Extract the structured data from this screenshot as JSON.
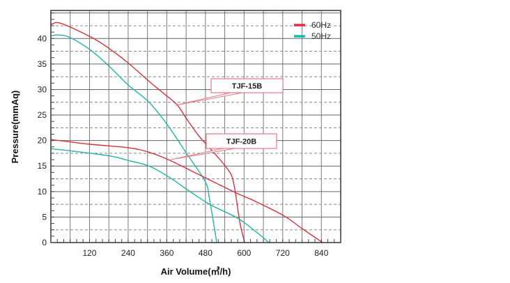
{
  "chart_data": {
    "type": "line",
    "title": "",
    "xlabel": "Air Volume(㎥/h)",
    "ylabel": "Pressure(mmAq)",
    "xlim": [
      0,
      900
    ],
    "ylim": [
      0,
      45.5
    ],
    "xticks": [
      120,
      240,
      360,
      480,
      600,
      720,
      840
    ],
    "yticks": [
      0,
      5,
      10,
      15,
      20,
      25,
      30,
      35,
      40
    ],
    "grid": true,
    "legend_position": "top-right",
    "legend": [
      {
        "label": "60Hz",
        "color": "#d9303a"
      },
      {
        "label": "50Hz",
        "color": "#1fb5a8"
      }
    ],
    "annotations": [
      {
        "text": "TJF-15B",
        "target_series": "TJF-15B 60Hz"
      },
      {
        "text": "TJF-20B",
        "target_series": "TJF-20B 60Hz"
      }
    ],
    "series": [
      {
        "model": "TJF-15B",
        "freq": "60Hz",
        "color": "#d9303a",
        "points": [
          [
            0,
            42.7
          ],
          [
            30,
            43
          ],
          [
            124,
            40.3
          ],
          [
            182,
            38
          ],
          [
            240,
            35.2
          ],
          [
            305,
            31.6
          ],
          [
            349,
            29.3
          ],
          [
            392,
            27
          ],
          [
            421,
            24.3
          ],
          [
            457,
            21.1
          ],
          [
            482,
            19.3
          ],
          [
            515,
            17
          ],
          [
            544,
            14.8
          ],
          [
            562,
            13
          ],
          [
            573,
            9.8
          ],
          [
            587,
            3.9
          ],
          [
            602,
            0
          ]
        ]
      },
      {
        "model": "TJF-15B",
        "freq": "50Hz",
        "color": "#1fb5a8",
        "points": [
          [
            0,
            40.5
          ],
          [
            23,
            40.7
          ],
          [
            59,
            40.2
          ],
          [
            124,
            37.7
          ],
          [
            182,
            34.5
          ],
          [
            240,
            30.9
          ],
          [
            305,
            27.5
          ],
          [
            363,
            23
          ],
          [
            421,
            17.5
          ],
          [
            479,
            12
          ],
          [
            493,
            8.4
          ],
          [
            515,
            0
          ]
        ]
      },
      {
        "model": "TJF-20B",
        "freq": "60Hz",
        "color": "#d9303a",
        "points": [
          [
            0,
            20.2
          ],
          [
            117,
            19.3
          ],
          [
            240,
            18.6
          ],
          [
            305,
            17.7
          ],
          [
            370,
            16.1
          ],
          [
            457,
            13.4
          ],
          [
            573,
            9.8
          ],
          [
            638,
            8
          ],
          [
            725,
            5.2
          ],
          [
            781,
            2.7
          ],
          [
            844,
            0
          ]
        ]
      },
      {
        "model": "TJF-20B",
        "freq": "50Hz",
        "color": "#1fb5a8",
        "points": [
          [
            0,
            18.4
          ],
          [
            59,
            18
          ],
          [
            182,
            17
          ],
          [
            240,
            16.1
          ],
          [
            305,
            15
          ],
          [
            363,
            13
          ],
          [
            421,
            10.5
          ],
          [
            493,
            7.5
          ],
          [
            587,
            4.5
          ],
          [
            678,
            0
          ]
        ]
      }
    ]
  }
}
